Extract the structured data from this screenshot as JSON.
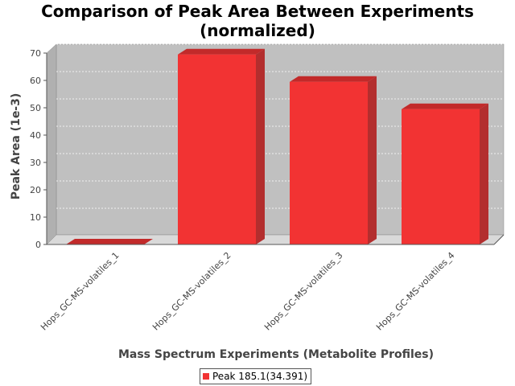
{
  "chart_data": {
    "type": "bar",
    "title": "Comparison of Peak Area Between Experiments",
    "subtitle": "(normalized)",
    "xlabel": "Mass Spectrum Experiments (Metabolite Profiles)",
    "ylabel": "Peak Area (1e-3)",
    "ylim": [
      0,
      70
    ],
    "yticks": [
      0,
      10,
      20,
      30,
      40,
      50,
      60,
      70
    ],
    "categories": [
      "Hops_GC-MS-volatiles_1",
      "Hops_GC-MS-volatiles_2",
      "Hops_GC-MS-volatiles_3",
      "Hops_GC-MS-volatiles_4"
    ],
    "series": [
      {
        "name": "Peak 185.1(34.391)",
        "values": [
          0,
          69.5,
          59.5,
          49.5
        ]
      }
    ],
    "grid": true,
    "legend_position": "bottom",
    "colors": {
      "bar_front": "#f23333",
      "bar_side": "#b32e2e",
      "bar_top": "#c22a2a",
      "plot_background": "#c0c0c0",
      "plot_floor": "#d9d9d9",
      "gridline": "#ffffff",
      "axis": "#555555"
    }
  }
}
